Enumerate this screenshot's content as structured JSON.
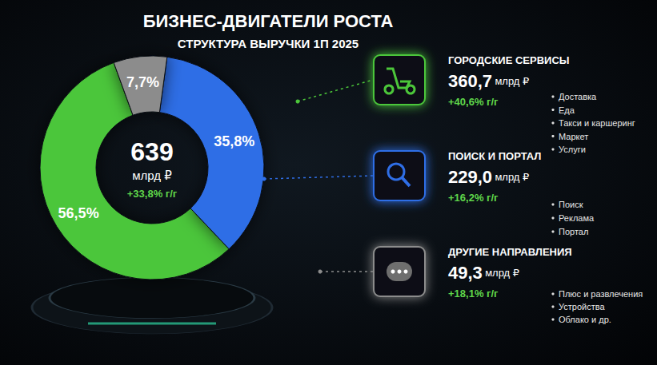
{
  "chart_data": {
    "type": "pie",
    "title": "БИЗНЕС-ДВИГАТЕЛИ РОСТА",
    "subtitle": "СТРУКТУРА ВЫРУЧКИ 1П 2025",
    "categories": [
      "ГОРОДСКИЕ СЕРВИСЫ",
      "ПОИСК И ПОРТАЛ",
      "ДРУГИЕ НАПРАВЛЕНИЯ"
    ],
    "values": [
      56.5,
      35.8,
      7.7
    ],
    "value_labels": [
      "56,5%",
      "35,8%",
      "7,7%"
    ],
    "colors": [
      "#4cc63a",
      "#2f6ee6",
      "#8c8c8c"
    ],
    "data_labels": true,
    "center": {
      "total": 639,
      "unit": "млрд ₽",
      "growth": "+33,8% г/г"
    },
    "segments": [
      {
        "amount": 360.7,
        "amount_label": "360,7",
        "unit": "млрд ₽",
        "growth": "+40,6% г/г",
        "items": [
          "Доставка",
          "Еда",
          "Такси и каршеринг",
          "Маркет",
          "Услуги"
        ]
      },
      {
        "amount": 229.0,
        "amount_label": "229,0",
        "unit": "млрд ₽",
        "growth": "+16,2% г/г",
        "items": [
          "Поиск",
          "Реклама",
          "Портал"
        ]
      },
      {
        "amount": 49.3,
        "amount_label": "49,3",
        "unit": "млрд ₽",
        "growth": "+18,1% г/г",
        "items": [
          "Плюс и развлечения",
          "Устройства",
          "Облако и др."
        ]
      }
    ]
  }
}
